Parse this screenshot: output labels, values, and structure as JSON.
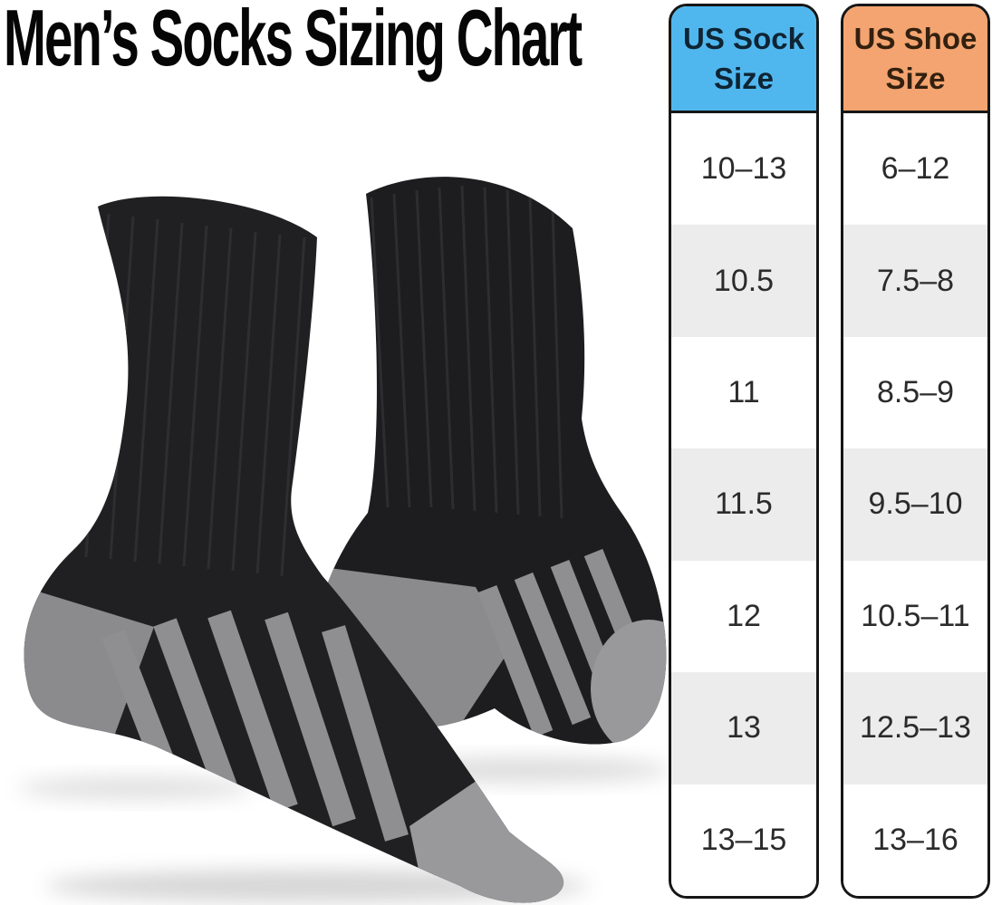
{
  "page_title": "Men’s Socks Sizing Chart",
  "illustration": {
    "name": "two-black-crew-socks-photo",
    "sock_color": "#202022",
    "accent_gray": "#8f8f91"
  },
  "table": {
    "columns": [
      {
        "id": "us-sock-size",
        "header": "US Sock Size",
        "header_bg": "#50b7ee",
        "header_text_color": "#0f2433",
        "values": [
          "10–13",
          "10.5",
          "11",
          "11.5",
          "12",
          "13",
          "13–15"
        ]
      },
      {
        "id": "us-shoe-size",
        "header": "US Shoe Size",
        "header_bg": "#f4a470",
        "header_text_color": "#33200f",
        "values": [
          "6–12",
          "7.5–8",
          "8.5–9",
          "9.5–10",
          "10.5–11",
          "12.5–13",
          "13–16"
        ]
      }
    ],
    "style": {
      "row_bg": "#ffffff",
      "row_alt_bg": "#ececec",
      "border_color": "#161616",
      "value_text_color": "#2b2b2b"
    }
  },
  "chart_data": {
    "type": "table",
    "title": "Men’s Socks Sizing Chart",
    "columns": [
      "US Sock Size",
      "US Shoe Size"
    ],
    "rows": [
      [
        "10–13",
        "6–12"
      ],
      [
        "10.5",
        "7.5–8"
      ],
      [
        "11",
        "8.5–9"
      ],
      [
        "11.5",
        "9.5–10"
      ],
      [
        "12",
        "10.5–11"
      ],
      [
        "13",
        "12.5–13"
      ],
      [
        "13–15",
        "13–16"
      ]
    ]
  }
}
